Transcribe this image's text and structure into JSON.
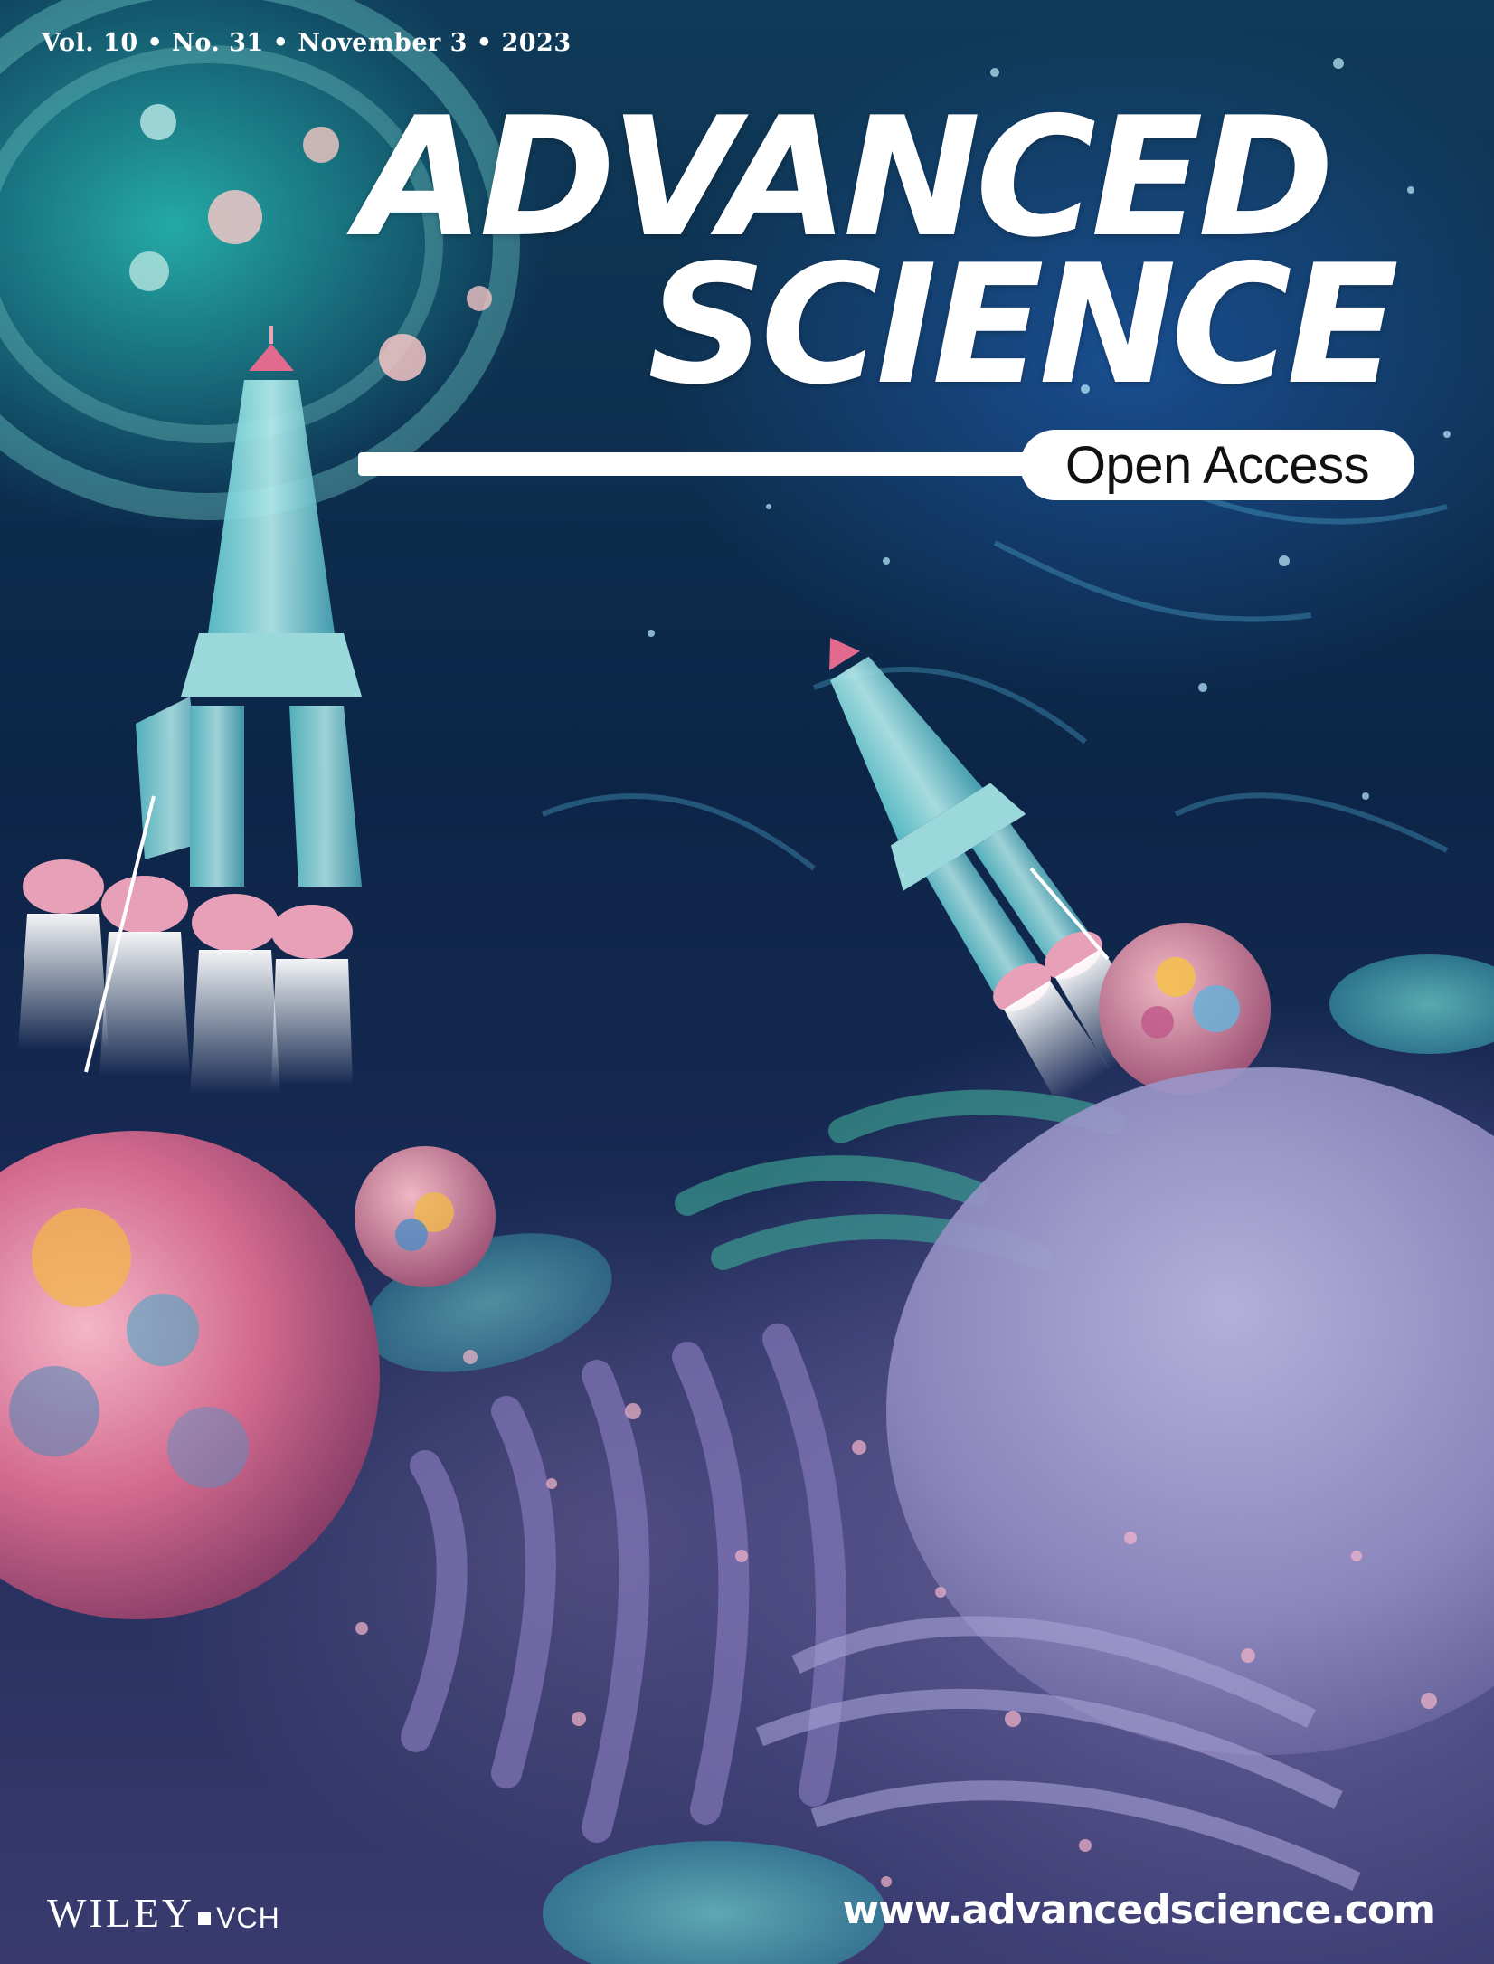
{
  "cover": {
    "issue_line": "Vol. 10 • No. 31 • November 3 • 2023",
    "title_line1": "ADVANCED",
    "title_line2": "SCIENCE",
    "badge": "Open Access",
    "publisher": "WILEY",
    "publisher_suffix": "VCH",
    "website": "www.advancedscience.com"
  },
  "colors": {
    "background": "#0c2547",
    "accent_teal": "#2bbfb0",
    "accent_pink": "#e07aa0",
    "nucleus_lavender": "#9a96c8",
    "text": "#ffffff"
  }
}
